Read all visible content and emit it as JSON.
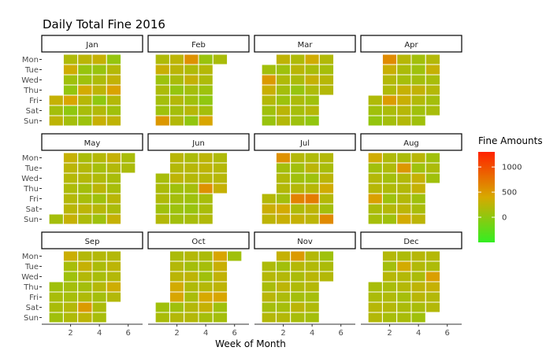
{
  "chart_data": {
    "type": "heatmap",
    "title": "Daily Total Fine 2016",
    "xlabel": "Week of Month",
    "x_ticks": [
      2,
      4,
      6
    ],
    "xlim": [
      0,
      7
    ],
    "days": [
      "Mon",
      "Tue",
      "Wed",
      "Thu",
      "Fri",
      "Sat",
      "Sun"
    ],
    "legend": {
      "title": "Fine Amounts",
      "ticks": [
        0,
        500,
        1000
      ],
      "range": [
        -500,
        1300
      ],
      "colors": [
        "#33ee22",
        "#d7a900",
        "#ff2200"
      ]
    },
    "panels": [
      {
        "name": "Jan",
        "firstDay": 4,
        "days": 31,
        "values": [
          300,
          120,
          260,
          180,
          350,
          100,
          30,
          420,
          10,
          120,
          240,
          50,
          90,
          380,
          220,
          140,
          80,
          300,
          60,
          170,
          260,
          10,
          190,
          310,
          40,
          210,
          280,
          440,
          200,
          100,
          270
        ]
      },
      {
        "name": "Feb",
        "firstDay": 0,
        "days": 29,
        "values": [
          180,
          320,
          80,
          160,
          120,
          90,
          520,
          250,
          240,
          150,
          40,
          200,
          120,
          200,
          560,
          180,
          290,
          120,
          100,
          220,
          20,
          60,
          210,
          170,
          80,
          10,
          120,
          420,
          150
        ]
      },
      {
        "name": "Mar",
        "firstDay": 1,
        "days": 31,
        "values": [
          110,
          500,
          320,
          200,
          100,
          60,
          270,
          90,
          180,
          120,
          80,
          240,
          200,
          180,
          230,
          160,
          50,
          160,
          130,
          90,
          360,
          150,
          300,
          170,
          100,
          210,
          20,
          190,
          130,
          220,
          200
        ]
      },
      {
        "name": "Apr",
        "firstDay": 4,
        "days": 30,
        "values": [
          180,
          100,
          30,
          600,
          320,
          200,
          180,
          490,
          160,
          120,
          220,
          160,
          130,
          300,
          320,
          220,
          200,
          110,
          90,
          120,
          280,
          190,
          100,
          100,
          200,
          300,
          140,
          210,
          120,
          140
        ]
      },
      {
        "name": "May",
        "firstDay": 6,
        "days": 31,
        "values": [
          120,
          300,
          240,
          210,
          170,
          200,
          230,
          300,
          150,
          200,
          200,
          120,
          140,
          250,
          170,
          210,
          130,
          180,
          240,
          100,
          220,
          90,
          300,
          200,
          150,
          140,
          230,
          160,
          300,
          150,
          160
        ]
      },
      {
        "name": "Jun",
        "firstDay": 2,
        "days": 30,
        "values": [
          140,
          160,
          180,
          100,
          200,
          230,
          200,
          260,
          100,
          120,
          80,
          110,
          160,
          220,
          210,
          130,
          90,
          60,
          140,
          250,
          260,
          220,
          560,
          140,
          150,
          190,
          180,
          210,
          220,
          300
        ]
      },
      {
        "name": "Jul",
        "firstDay": 4,
        "days": 31,
        "values": [
          210,
          330,
          260,
          560,
          120,
          190,
          200,
          120,
          380,
          320,
          200,
          110,
          100,
          200,
          660,
          180,
          300,
          180,
          240,
          90,
          220,
          700,
          260,
          250,
          200,
          150,
          240,
          360,
          210,
          120,
          610
        ]
      },
      {
        "name": "Aug",
        "firstDay": 0,
        "days": 31,
        "values": [
          360,
          110,
          200,
          220,
          460,
          160,
          130,
          180,
          180,
          120,
          180,
          90,
          200,
          100,
          160,
          520,
          200,
          200,
          200,
          250,
          380,
          230,
          90,
          300,
          300,
          100,
          150,
          250,
          100,
          160,
          100
        ]
      },
      {
        "name": "Sep",
        "firstDay": 3,
        "days": 30,
        "values": [
          100,
          140,
          150,
          100,
          330,
          140,
          90,
          120,
          130,
          200,
          180,
          200,
          300,
          200,
          120,
          180,
          500,
          250,
          200,
          160,
          140,
          210,
          120,
          160,
          140,
          200,
          250,
          200,
          350,
          200
        ]
      },
      {
        "name": "Oct",
        "firstDay": 5,
        "days": 31,
        "values": [
          100,
          150,
          160,
          200,
          240,
          370,
          420,
          100,
          200,
          200,
          120,
          260,
          180,
          150,
          200,
          200,
          160,
          130,
          100,
          210,
          400,
          300,
          130,
          430,
          320,
          280,
          260,
          420,
          100,
          120,
          100
        ]
      },
      {
        "name": "Nov",
        "firstDay": 1,
        "days": 30,
        "values": [
          170,
          210,
          150,
          230,
          120,
          200,
          300,
          110,
          200,
          250,
          170,
          130,
          200,
          500,
          210,
          160,
          180,
          120,
          240,
          140,
          200,
          190,
          230,
          210,
          130,
          180,
          120,
          90,
          160,
          200
        ]
      },
      {
        "name": "Dec",
        "firstDay": 3,
        "days": 31,
        "values": [
          140,
          160,
          220,
          200,
          200,
          120,
          220,
          150,
          180,
          200,
          140,
          170,
          380,
          200,
          210,
          130,
          160,
          150,
          220,
          190,
          160,
          260,
          230,
          150,
          100,
          210,
          170,
          470,
          300,
          200,
          200
        ]
      }
    ]
  }
}
